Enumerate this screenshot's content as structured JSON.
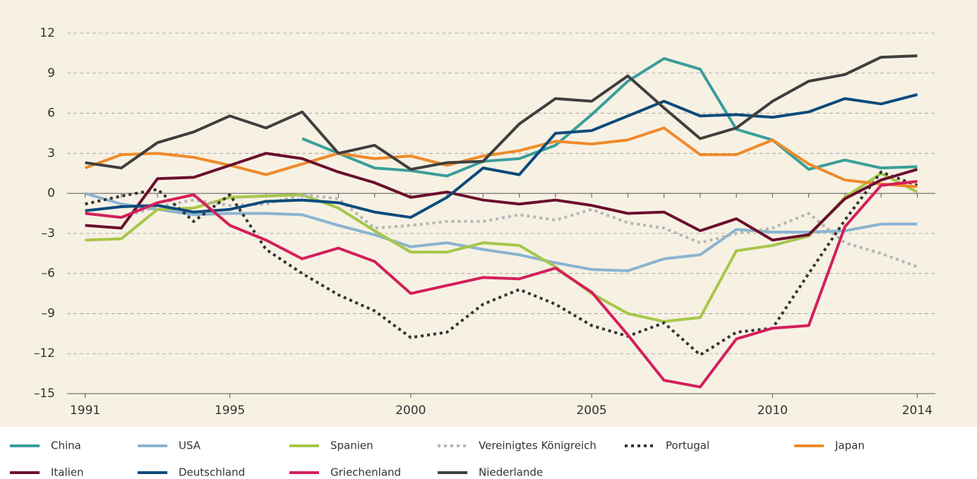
{
  "chart_data": {
    "type": "line",
    "x": [
      1991,
      1992,
      1993,
      1994,
      1995,
      1996,
      1997,
      1998,
      1999,
      2000,
      2001,
      2002,
      2003,
      2004,
      2005,
      2006,
      2007,
      2008,
      2009,
      2010,
      2011,
      2012,
      2013,
      2014
    ],
    "xlim": [
      1990.5,
      2014.5
    ],
    "xticks": [
      1991,
      1995,
      2000,
      2005,
      2010,
      2014
    ],
    "ylim": [
      -15,
      12
    ],
    "yticks": [
      {
        "value": -15,
        "label": "–15"
      },
      {
        "value": -12,
        "label": "–12"
      },
      {
        "value": -9,
        "label": "–9"
      },
      {
        "value": -6,
        "label": "–6"
      },
      {
        "value": -3,
        "label": "–3"
      },
      0,
      3,
      6,
      9,
      12
    ],
    "grid": true,
    "series": [
      {
        "name": "China",
        "color": "#3a9e9a",
        "dash": "solid",
        "values": [
          null,
          null,
          null,
          null,
          null,
          null,
          4.1,
          3.0,
          1.9,
          1.7,
          1.3,
          2.4,
          2.6,
          3.6,
          5.9,
          8.4,
          10.1,
          9.3,
          4.8,
          4.0,
          1.8,
          2.5,
          1.9,
          2.0
        ]
      },
      {
        "name": "USA",
        "color": "#8ab4d0",
        "dash": "solid",
        "values": [
          0.0,
          -0.8,
          -1.2,
          -1.6,
          -1.5,
          -1.5,
          -1.6,
          -2.4,
          -3.1,
          -4.0,
          -3.7,
          -4.2,
          -4.6,
          -5.2,
          -5.7,
          -5.8,
          -4.9,
          -4.6,
          -2.7,
          -2.9,
          -2.9,
          -2.8,
          -2.3,
          -2.3
        ]
      },
      {
        "name": "Spanien",
        "color": "#a7c64a",
        "dash": "solid",
        "values": [
          -3.5,
          -3.4,
          -1.2,
          -1.1,
          -0.3,
          -0.2,
          -0.1,
          -1.1,
          -2.8,
          -4.4,
          -4.4,
          -3.7,
          -3.9,
          -5.5,
          -7.5,
          -9.0,
          -9.6,
          -9.3,
          -4.3,
          -3.9,
          -3.2,
          -0.3,
          1.5,
          0.1
        ]
      },
      {
        "name": "Vereinigtes Königreich",
        "color": "#b5b5b5",
        "dash": "dotted",
        "values": [
          -1.5,
          -1.8,
          -1.0,
          -0.5,
          -0.9,
          -0.8,
          -0.1,
          -0.4,
          -2.6,
          -2.4,
          -2.1,
          -2.1,
          -1.6,
          -2.0,
          -1.2,
          -2.2,
          -2.6,
          -3.7,
          -3.0,
          -2.6,
          -1.5,
          -3.7,
          -4.5,
          -5.5
        ]
      },
      {
        "name": "Portugal",
        "color": "#333333",
        "dash": "dotted",
        "values": [
          -0.8,
          -0.2,
          0.3,
          -2.1,
          -0.1,
          -4.2,
          -6.0,
          -7.6,
          -8.8,
          -10.8,
          -10.4,
          -8.3,
          -7.2,
          -8.3,
          -9.9,
          -10.7,
          -9.7,
          -12.1,
          -10.4,
          -10.1,
          -6.0,
          -2.0,
          1.6,
          0.6
        ]
      },
      {
        "name": "Japan",
        "color": "#ef8a2c",
        "dash": "solid",
        "values": [
          1.9,
          2.9,
          3.0,
          2.7,
          2.1,
          1.4,
          2.2,
          3.0,
          2.6,
          2.8,
          2.1,
          2.8,
          3.2,
          3.9,
          3.7,
          4.0,
          4.9,
          2.9,
          2.9,
          4.0,
          2.2,
          1.0,
          0.7,
          0.5
        ]
      },
      {
        "name": "Italien",
        "color": "#6b0f2e",
        "dash": "solid",
        "values": [
          -2.4,
          -2.6,
          1.1,
          1.2,
          2.1,
          3.0,
          2.6,
          1.6,
          0.8,
          -0.3,
          0.1,
          -0.5,
          -0.8,
          -0.5,
          -0.9,
          -1.5,
          -1.4,
          -2.8,
          -1.9,
          -3.5,
          -3.1,
          -0.4,
          1.0,
          1.8
        ]
      },
      {
        "name": "Deutschland",
        "color": "#0d4a7c",
        "dash": "solid",
        "values": [
          -1.3,
          -1.0,
          -0.9,
          -1.4,
          -1.2,
          -0.6,
          -0.5,
          -0.7,
          -1.4,
          -1.8,
          -0.3,
          1.9,
          1.4,
          4.5,
          4.7,
          5.8,
          6.9,
          5.8,
          5.9,
          5.7,
          6.1,
          7.1,
          6.7,
          7.4
        ]
      },
      {
        "name": "Griechenland",
        "color": "#d41f5c",
        "dash": "solid",
        "values": [
          -1.5,
          -1.8,
          -0.7,
          -0.1,
          -2.4,
          -3.5,
          -4.9,
          -4.1,
          -5.1,
          -7.5,
          -6.9,
          -6.3,
          -6.4,
          -5.6,
          -7.4,
          -10.6,
          -14.0,
          -14.5,
          -10.9,
          -10.1,
          -9.9,
          -2.5,
          0.6,
          0.9
        ]
      },
      {
        "name": "Niederlande",
        "color": "#3f3f3f",
        "dash": "solid",
        "values": [
          2.3,
          1.9,
          3.8,
          4.6,
          5.8,
          4.9,
          6.1,
          3.0,
          3.6,
          1.8,
          2.3,
          2.4,
          5.2,
          7.1,
          6.9,
          8.8,
          6.4,
          4.1,
          4.9,
          6.9,
          8.4,
          8.9,
          10.2,
          10.3
        ]
      }
    ]
  }
}
